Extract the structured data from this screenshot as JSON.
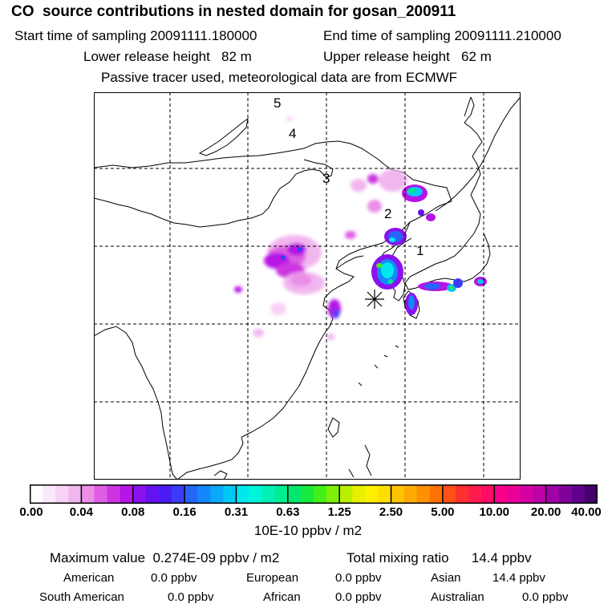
{
  "header": {
    "title": "CO  source contributions in nested domain for gosan_200911",
    "start_label": "Start time of sampling 20091111.180000",
    "end_label": "End time of sampling 20091111.210000",
    "lower_label": "Lower release height   82 m",
    "upper_label": "Upper release height   62 m",
    "tracer_note": "Passive tracer used, meteorological data are from ECMWF"
  },
  "map": {
    "labels": [
      "1",
      "2",
      "3",
      "4",
      "5"
    ],
    "receptor_symbol": "asterisk-icon"
  },
  "colorbar": {
    "tick_labels": [
      "0.00",
      "0.04",
      "0.08",
      "0.16",
      "0.31",
      "0.63",
      "1.25",
      "2.50",
      "5.00",
      "10.00",
      "20.00",
      "40.00"
    ],
    "colors": [
      "#ffffff",
      "#fce8fb",
      "#f8d2f6",
      "#f2b6ef",
      "#ea8ee8",
      "#de5ee2",
      "#cd34e0",
      "#b514e6",
      "#8a12ee",
      "#6512f2",
      "#4a1cf4",
      "#3a3cf8",
      "#2466fa",
      "#1288fa",
      "#08a8fa",
      "#00c8f6",
      "#00e8ee",
      "#00f6da",
      "#00f0b6",
      "#00ec90",
      "#00e870",
      "#18ea40",
      "#44ee18",
      "#7ef008",
      "#b8f000",
      "#e6f000",
      "#fff000",
      "#ffde00",
      "#ffc400",
      "#ffaa00",
      "#ff9000",
      "#ff7000",
      "#ff5018",
      "#ff3030",
      "#ff1c4c",
      "#ff0a68",
      "#f8008a",
      "#e80098",
      "#d400a4",
      "#bc00aa",
      "#a000a8",
      "#80009a",
      "#60008a",
      "#44006c"
    ],
    "units": "10E-10 ppbv / m2"
  },
  "stats": {
    "maximum_label": "Maximum value  0.274E-09 ppbv / m2",
    "total_label": "Total mixing ratio      14.4 ppbv",
    "regions": [
      {
        "name": "American",
        "value": "0.0 ppbv"
      },
      {
        "name": "European",
        "value": "0.0 ppbv"
      },
      {
        "name": "Asian",
        "value": "14.4 ppbv"
      },
      {
        "name": "South American",
        "value": "0.0 ppbv"
      },
      {
        "name": "African",
        "value": "0.0 ppbv"
      },
      {
        "name": "Australian",
        "value": "0.0 ppbv"
      }
    ]
  }
}
